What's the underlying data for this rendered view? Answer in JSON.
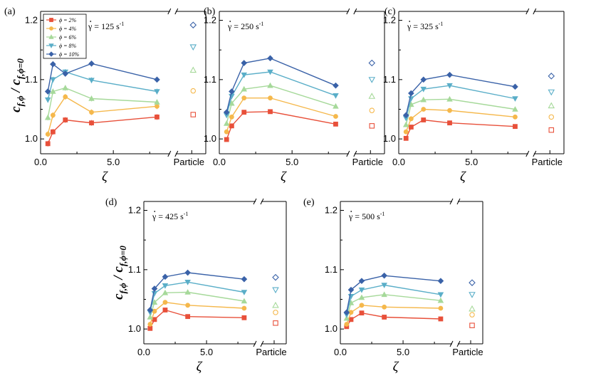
{
  "chart_data": [
    {
      "type": "line",
      "panel_label": "(a)",
      "shear_rate_label": "γ = 125 s",
      "shear_rate_exp": "-1",
      "x": [
        0.5,
        0.85,
        1.7,
        3.5,
        8.0
      ],
      "series": [
        {
          "name": "ϕ = 2%",
          "color": "#e8503a",
          "marker": "square",
          "values": [
            0.992,
            1.012,
            1.032,
            1.027,
            1.037
          ],
          "particle": 1.041
        },
        {
          "name": "ϕ = 4%",
          "color": "#f5b84c",
          "marker": "circle",
          "values": [
            1.008,
            1.04,
            1.071,
            1.045,
            1.055
          ],
          "particle": 1.081
        },
        {
          "name": "ϕ = 6%",
          "color": "#a6d99a",
          "marker": "triangle-up",
          "values": [
            1.036,
            1.08,
            1.086,
            1.068,
            1.062
          ],
          "particle": 1.116
        },
        {
          "name": "ϕ = 8%",
          "color": "#5aaec8",
          "marker": "triangle-down",
          "values": [
            1.066,
            1.1,
            1.113,
            1.099,
            1.08
          ],
          "particle": 1.155
        },
        {
          "name": "ϕ = 10%",
          "color": "#3a62a8",
          "marker": "diamond",
          "values": [
            1.08,
            1.126,
            1.11,
            1.127,
            1.1
          ],
          "particle": 1.192
        }
      ],
      "xticks": [
        "0.0",
        "5.0"
      ],
      "yticks": [
        "1.0",
        "1.1",
        "1.2"
      ],
      "particle_label": "Particle",
      "ylim": [
        0.975,
        1.215
      ],
      "xlim": [
        0,
        8.8
      ]
    },
    {
      "type": "line",
      "panel_label": "(b)",
      "shear_rate_label": "γ = 250 s",
      "shear_rate_exp": "-1",
      "x": [
        0.5,
        0.85,
        1.7,
        3.5,
        8.0
      ],
      "series": [
        {
          "color": "#e8503a",
          "marker": "square",
          "values": [
            0.999,
            1.022,
            1.045,
            1.046,
            1.025
          ],
          "particle": 1.022
        },
        {
          "color": "#f5b84c",
          "marker": "circle",
          "values": [
            1.012,
            1.037,
            1.069,
            1.069,
            1.038
          ],
          "particle": 1.048
        },
        {
          "color": "#a6d99a",
          "marker": "triangle-up",
          "values": [
            1.026,
            1.06,
            1.084,
            1.09,
            1.055
          ],
          "particle": 1.072
        },
        {
          "color": "#5aaec8",
          "marker": "triangle-down",
          "values": [
            1.04,
            1.072,
            1.108,
            1.113,
            1.073
          ],
          "particle": 1.1
        },
        {
          "color": "#3a62a8",
          "marker": "diamond",
          "values": [
            1.045,
            1.08,
            1.128,
            1.136,
            1.09
          ],
          "particle": 1.128
        }
      ],
      "xticks": [
        "0.0",
        "5.0"
      ],
      "yticks": [
        "1.0",
        "1.1",
        "1.2"
      ],
      "particle_label": "Particle",
      "ylim": [
        0.975,
        1.215
      ],
      "xlim": [
        0,
        8.8
      ]
    },
    {
      "type": "line",
      "panel_label": "(c)",
      "shear_rate_label": "γ = 325 s",
      "shear_rate_exp": "-1",
      "x": [
        0.5,
        0.85,
        1.7,
        3.5,
        8.0
      ],
      "series": [
        {
          "color": "#e8503a",
          "marker": "square",
          "values": [
            1.001,
            1.02,
            1.032,
            1.027,
            1.021
          ],
          "particle": 1.015
        },
        {
          "color": "#f5b84c",
          "marker": "circle",
          "values": [
            1.012,
            1.034,
            1.05,
            1.048,
            1.037
          ],
          "particle": 1.037
        },
        {
          "color": "#a6d99a",
          "marker": "triangle-up",
          "values": [
            1.024,
            1.058,
            1.066,
            1.067,
            1.05
          ],
          "particle": 1.056
        },
        {
          "color": "#5aaec8",
          "marker": "triangle-down",
          "values": [
            1.035,
            1.068,
            1.084,
            1.09,
            1.068
          ],
          "particle": 1.079
        },
        {
          "color": "#3a62a8",
          "marker": "diamond",
          "values": [
            1.04,
            1.077,
            1.1,
            1.108,
            1.088
          ],
          "particle": 1.106
        }
      ],
      "xticks": [
        "0.0",
        "5.0"
      ],
      "yticks": [
        "1.0",
        "1.1",
        "1.2"
      ],
      "particle_label": "Particle",
      "ylim": [
        0.975,
        1.215
      ],
      "xlim": [
        0,
        8.8
      ]
    },
    {
      "type": "line",
      "panel_label": "(d)",
      "shear_rate_label": "γ = 425 s",
      "shear_rate_exp": "-1",
      "x": [
        0.5,
        0.85,
        1.7,
        3.5,
        8.0
      ],
      "series": [
        {
          "color": "#e8503a",
          "marker": "square",
          "values": [
            1.001,
            1.016,
            1.032,
            1.021,
            1.019
          ],
          "particle": 1.01
        },
        {
          "color": "#f5b84c",
          "marker": "circle",
          "values": [
            1.008,
            1.03,
            1.045,
            1.04,
            1.035
          ],
          "particle": 1.028
        },
        {
          "color": "#a6d99a",
          "marker": "triangle-up",
          "values": [
            1.02,
            1.045,
            1.061,
            1.062,
            1.047
          ],
          "particle": 1.04
        },
        {
          "color": "#5aaec8",
          "marker": "triangle-down",
          "values": [
            1.028,
            1.06,
            1.073,
            1.079,
            1.062
          ],
          "particle": 1.066
        },
        {
          "color": "#3a62a8",
          "marker": "diamond",
          "values": [
            1.032,
            1.068,
            1.088,
            1.095,
            1.084
          ],
          "particle": 1.087
        }
      ],
      "xticks": [
        "0.0",
        "5.0"
      ],
      "yticks": [
        "1.0",
        "1.1",
        "1.2"
      ],
      "particle_label": "Particle",
      "ylim": [
        0.975,
        1.215
      ],
      "xlim": [
        0,
        8.8
      ]
    },
    {
      "type": "line",
      "panel_label": "(e)",
      "shear_rate_label": "γ = 500 s",
      "shear_rate_exp": "-1",
      "x": [
        0.5,
        0.85,
        1.7,
        3.5,
        8.0
      ],
      "series": [
        {
          "color": "#e8503a",
          "marker": "square",
          "values": [
            1.004,
            1.016,
            1.027,
            1.02,
            1.017
          ],
          "particle": 1.006
        },
        {
          "color": "#f5b84c",
          "marker": "circle",
          "values": [
            1.008,
            1.028,
            1.04,
            1.037,
            1.035
          ],
          "particle": 1.024
        },
        {
          "color": "#a6d99a",
          "marker": "triangle-up",
          "values": [
            1.018,
            1.044,
            1.053,
            1.058,
            1.048
          ],
          "particle": 1.034
        },
        {
          "color": "#5aaec8",
          "marker": "triangle-down",
          "values": [
            1.024,
            1.055,
            1.066,
            1.074,
            1.058
          ],
          "particle": 1.058
        },
        {
          "color": "#3a62a8",
          "marker": "diamond",
          "values": [
            1.028,
            1.066,
            1.081,
            1.09,
            1.081
          ],
          "particle": 1.078
        }
      ],
      "xticks": [
        "0.0",
        "5.0"
      ],
      "yticks": [
        "1.0",
        "1.1",
        "1.2"
      ],
      "particle_label": "Particle",
      "ylim": [
        0.975,
        1.215
      ],
      "xlim": [
        0,
        8.8
      ]
    }
  ],
  "axis_labels": {
    "ylabel_c": "c",
    "ylabel_sub_top": "f,ϕ",
    "ylabel_slash": " / ",
    "ylabel_sub_bottom": "f,ϕ=0",
    "xlabel": "ζ"
  }
}
